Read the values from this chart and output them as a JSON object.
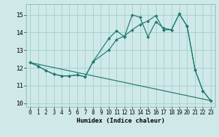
{
  "xlabel": "Humidex (Indice chaleur)",
  "background_color": "#cfe8e8",
  "grid_color": "#9ecece",
  "line_color": "#1e7b6e",
  "xlim": [
    -0.5,
    23.5
  ],
  "ylim": [
    9.8,
    15.6
  ],
  "yticks": [
    10,
    11,
    12,
    13,
    14,
    15
  ],
  "xticks": [
    0,
    1,
    2,
    3,
    4,
    5,
    6,
    7,
    8,
    9,
    10,
    11,
    12,
    13,
    14,
    15,
    16,
    17,
    18,
    19,
    20,
    21,
    22,
    23
  ],
  "line1_x": [
    0,
    1,
    2,
    3,
    4,
    5,
    6,
    7,
    8,
    10,
    11,
    12,
    13,
    14,
    15,
    16,
    17,
    18,
    19,
    20,
    21,
    22,
    23
  ],
  "line1_y": [
    12.3,
    12.1,
    11.85,
    11.65,
    11.55,
    11.55,
    11.6,
    11.5,
    12.35,
    13.65,
    14.1,
    13.75,
    15.0,
    14.85,
    13.75,
    14.6,
    14.25,
    14.15,
    15.05,
    14.35,
    11.9,
    10.7,
    10.15
  ],
  "line2_x": [
    0,
    1,
    2,
    3,
    4,
    5,
    6,
    7,
    8,
    10,
    11,
    12,
    13,
    14,
    15,
    16,
    17,
    18,
    19,
    20,
    21,
    22,
    23
  ],
  "line2_y": [
    12.3,
    12.1,
    11.85,
    11.65,
    11.55,
    11.55,
    11.6,
    11.5,
    12.35,
    13.0,
    13.6,
    13.8,
    14.15,
    14.45,
    14.65,
    14.95,
    14.15,
    14.15,
    15.05,
    14.35,
    11.9,
    10.7,
    10.15
  ],
  "line3_x": [
    0,
    23
  ],
  "line3_y": [
    12.3,
    10.15
  ]
}
